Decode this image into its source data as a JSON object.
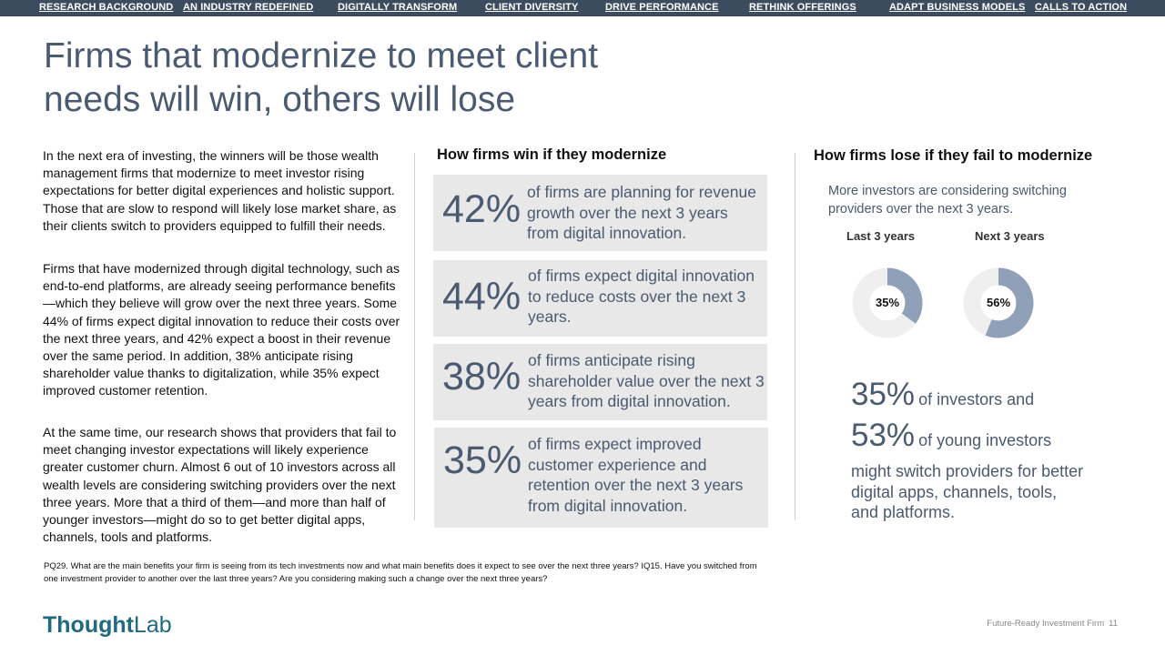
{
  "nav": {
    "items": [
      "RESEARCH BACKGROUND",
      "AN INDUSTRY REDEFINED",
      "DIGITALLY TRANSFORM",
      "CLIENT DIVERSITY",
      "DRIVE PERFORMANCE",
      "RETHINK OFFERINGS",
      "ADAPT BUSINESS MODELS",
      "CALLS TO ACTION"
    ]
  },
  "title": "Firms that modernize to meet client needs will win, others will lose",
  "body": {
    "p1": "In the next era of investing, the winners will be those wealth management firms that modernize to meet investor rising expectations for better digital experiences and holistic support. Those that are slow to respond will likely lose market share, as their clients switch to providers equipped to fulfill their needs.",
    "p2": "Firms that have modernized through digital technology, such as end-to-end platforms, are already seeing performance benefits—which they believe will grow over the next three years. Some 44% of firms expect digital innovation to reduce their costs over the next three years, and 42% expect a boost in their revenue over the same period. In addition, 38% anticipate rising shareholder value thanks to digitalization, while 35% expect improved customer retention.",
    "p3": "At the same time, our research shows that providers that fail to meet changing investor expectations will likely experience greater customer churn. Almost 6 out of 10 investors across all wealth levels are considering switching providers over the next three years. More that a third of them—and more than half of younger investors—might do so to get better digital apps, channels, tools and platforms."
  },
  "win": {
    "heading": "How firms win if they modernize",
    "stats": [
      {
        "value": "42%",
        "text": "of firms are planning for revenue growth over the next 3 years from digital innovation."
      },
      {
        "value": "44%",
        "text": "of firms expect digital innovation to reduce costs over the next 3 years."
      },
      {
        "value": "38%",
        "text": "of firms anticipate rising shareholder value over the next 3 years from digital innovation."
      },
      {
        "value": "35%",
        "text": "of firms expect improved customer experience and retention over the next 3 years from digital innovation."
      }
    ]
  },
  "lose": {
    "heading": "How firms lose if they fail to modernize",
    "subtext": "More investors are considering switching providers over the next 3 years.",
    "donuts": [
      {
        "label": "Last 3 years",
        "value": 35,
        "display": "35%"
      },
      {
        "label": "Next 3 years",
        "value": 56,
        "display": "56%"
      }
    ],
    "big1_num": "35%",
    "big1_text": "of investors and",
    "big2_num": "53%",
    "big2_text": "of young investors",
    "tail": "might switch providers for better digital apps, channels, tools, and platforms."
  },
  "colors": {
    "nav_bg": "#3d4b5e",
    "accent": "#4a5a70",
    "donut_fill": "#8fa0b8",
    "donut_track": "#efefef",
    "logo": "#1f6a7f"
  },
  "footnote": "PQ29. What are the main benefits your firm is seeing from its tech investments now and what main benefits does it expect to see over the next three years? IQ15. Have you switched from one investment provider to another over the last three years? Are you considering making such a change over the next three years?",
  "logo": {
    "part1": "Thought",
    "part2": "Lab"
  },
  "footer": {
    "label": "Future-Ready Investment Firm",
    "page": "11"
  }
}
